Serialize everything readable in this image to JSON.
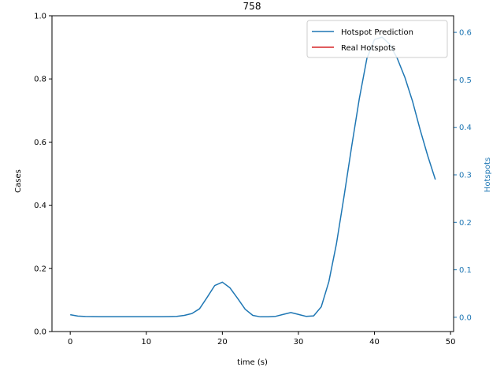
{
  "chart_data": {
    "type": "line",
    "title": "758",
    "xlabel": "time (s)",
    "ylabel_left": "Cases",
    "ylabel_right": "Hotspots",
    "xlim": [
      -2.4,
      50.4
    ],
    "ylim_left": [
      0,
      1.0
    ],
    "ylim_right": [
      -0.03,
      0.635
    ],
    "x_ticks": [
      0,
      10,
      20,
      30,
      40,
      50
    ],
    "y_ticks_left": [
      0.0,
      0.2,
      0.4,
      0.6,
      0.8,
      1.0
    ],
    "y_ticks_right": [
      0.0,
      0.1,
      0.2,
      0.3,
      0.4,
      0.5,
      0.6
    ],
    "grid": false,
    "legend_position": "top-right",
    "series": [
      {
        "name": "Hotspot Prediction",
        "axis": "right",
        "color": "#1f77b4",
        "x": [
          0,
          1,
          2,
          3,
          4,
          5,
          6,
          7,
          8,
          9,
          10,
          11,
          12,
          13,
          14,
          15,
          16,
          17,
          18,
          19,
          20,
          21,
          22,
          23,
          24,
          25,
          26,
          27,
          28,
          29,
          30,
          31,
          32,
          33,
          34,
          35,
          36,
          37,
          38,
          39,
          40,
          41,
          42,
          43,
          44,
          45,
          46,
          47,
          48
        ],
        "y": [
          0.0055,
          0.0025,
          0.0018,
          0.0015,
          0.0014,
          0.0014,
          0.0014,
          0.0014,
          0.0014,
          0.0013,
          0.0013,
          0.0013,
          0.0013,
          0.0015,
          0.002,
          0.004,
          0.008,
          0.018,
          0.042,
          0.067,
          0.074,
          0.062,
          0.04,
          0.017,
          0.004,
          0.001,
          0.001,
          0.002,
          0.006,
          0.01,
          0.006,
          0.002,
          0.003,
          0.022,
          0.075,
          0.155,
          0.255,
          0.36,
          0.46,
          0.545,
          0.585,
          0.59,
          0.575,
          0.545,
          0.505,
          0.455,
          0.395,
          0.34,
          0.29
        ]
      },
      {
        "name": "Real Hotspots",
        "axis": "left",
        "color": "#d62728",
        "x": [],
        "y": []
      }
    ]
  }
}
